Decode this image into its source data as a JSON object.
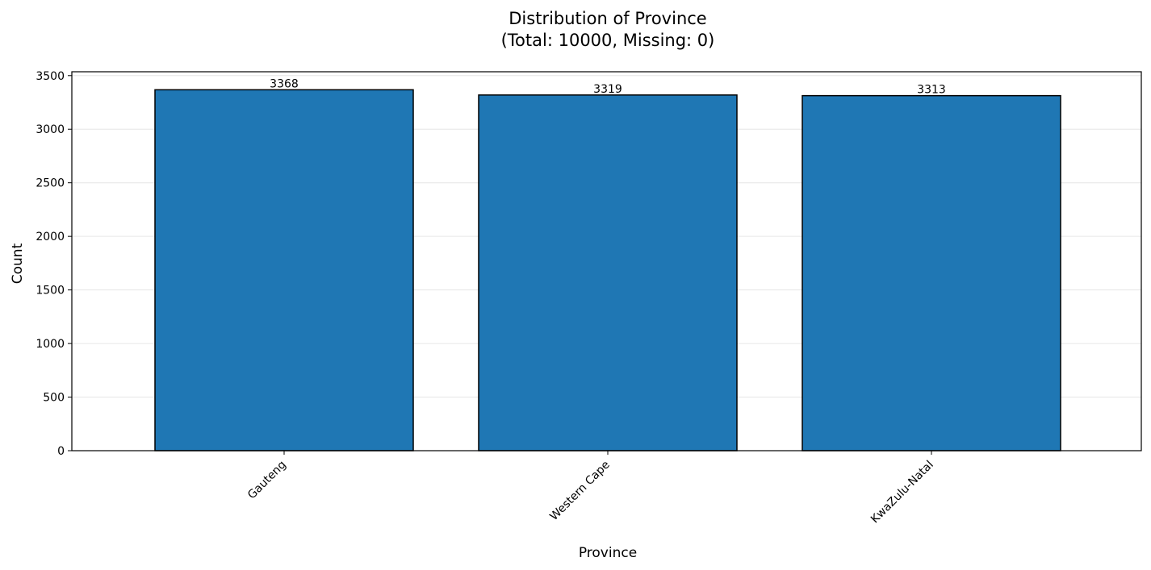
{
  "chart_data": {
    "type": "bar",
    "title_line1": "Distribution of Province",
    "title_line2": "(Total: 10000, Missing: 0)",
    "xlabel": "Province",
    "ylabel": "Count",
    "categories": [
      "Gauteng",
      "Western Cape",
      "KwaZulu-Natal"
    ],
    "values": [
      3368,
      3319,
      3313
    ],
    "ylim": [
      0,
      3536
    ],
    "yticks": [
      0,
      500,
      1000,
      1500,
      2000,
      2500,
      3000,
      3500
    ],
    "grid": "y",
    "bar_color": "#1f77b4",
    "bar_edge_color": "#000000",
    "grid_color": "#e6e6e6"
  }
}
